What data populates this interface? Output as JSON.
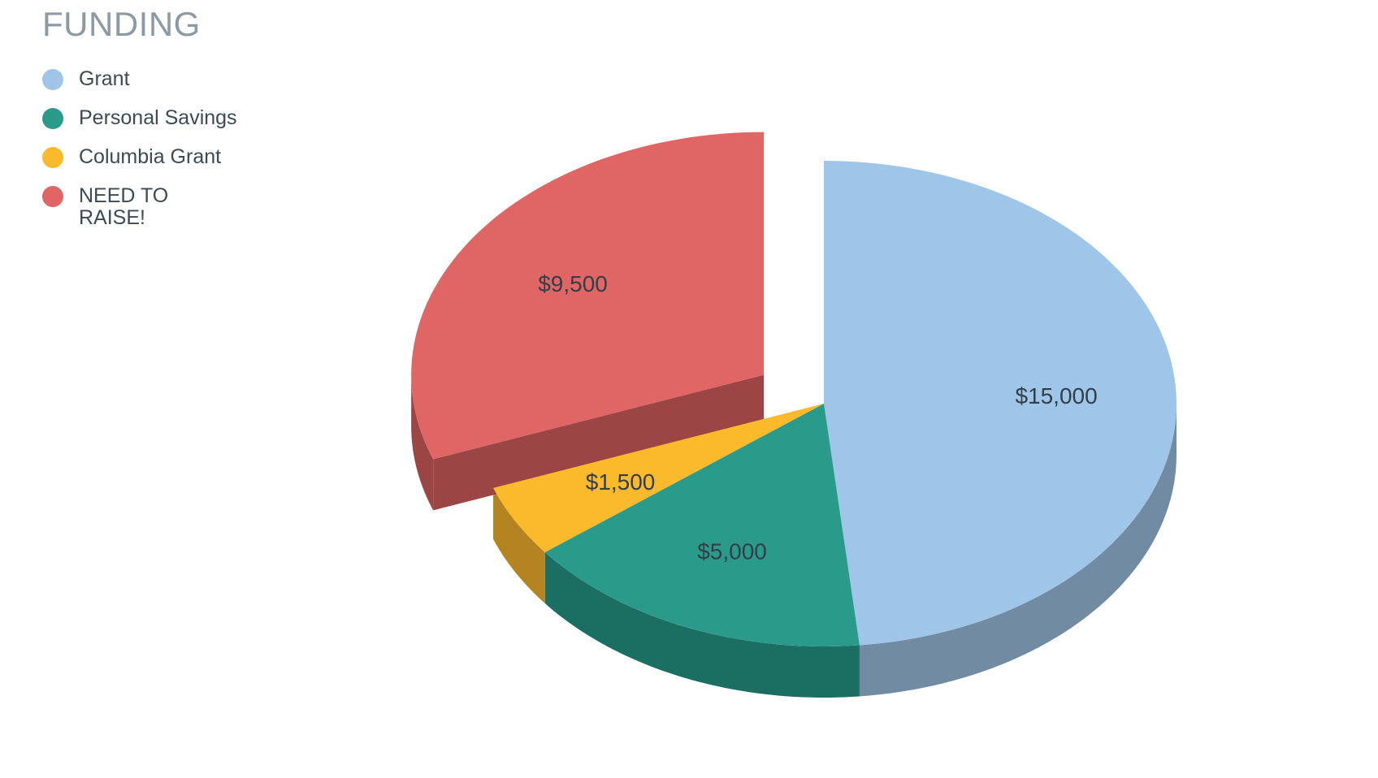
{
  "chart_data": {
    "type": "pie",
    "style": "3d-exploded",
    "title": "FUNDING",
    "legend_position": "top-left",
    "slices": [
      {
        "name": "Grant",
        "value": 15000,
        "label": "$15,000",
        "color": "#9fc5e8",
        "side_color": "#708ba2",
        "exploded": false
      },
      {
        "name": "Personal Savings",
        "value": 5000,
        "label": "$5,000",
        "color": "#2a9a8a",
        "side_color": "#1b6e62",
        "exploded": false
      },
      {
        "name": "Columbia Grant",
        "value": 1500,
        "label": "$1,500",
        "color": "#fbb92c",
        "side_color": "#b38420",
        "exploded": false
      },
      {
        "name": "NEED TO RAISE!",
        "value": 9500,
        "label": "$9,500",
        "color": "#e06666",
        "side_color": "#9c4545",
        "exploded": true
      }
    ]
  }
}
